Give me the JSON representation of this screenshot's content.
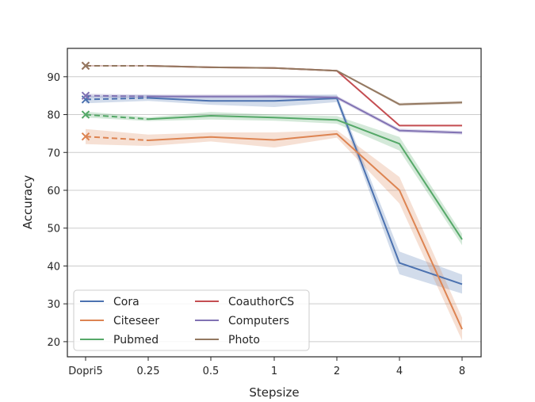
{
  "chart_data": {
    "type": "line",
    "title": "",
    "xlabel": "Stepsize",
    "ylabel": "Accuracy",
    "categories": [
      "Dopri5",
      "0.25",
      "0.5",
      "1",
      "2",
      "4",
      "8"
    ],
    "ylim": [
      16,
      97.5
    ],
    "yticks": [
      20,
      30,
      40,
      50,
      60,
      70,
      80,
      90
    ],
    "grid": "horizontal",
    "legend_position": "lower-left",
    "reference_marker": "x at Dopri5 connected by dashed segment",
    "series": [
      {
        "name": "Cora",
        "color": "#4c72b0",
        "values": [
          84.0,
          84.4,
          83.6,
          83.6,
          84.3,
          40.8,
          35.2
        ],
        "std": [
          1.0,
          0.8,
          1.0,
          1.6,
          1.0,
          3.0,
          2.5
        ]
      },
      {
        "name": "Citeseer",
        "color": "#dd8452",
        "values": [
          74.2,
          73.2,
          74.1,
          73.3,
          74.9,
          60.0,
          23.3
        ],
        "std": [
          2.0,
          1.5,
          1.2,
          2.0,
          1.0,
          3.5,
          3.0
        ]
      },
      {
        "name": "Pubmed",
        "color": "#55a868",
        "values": [
          80.0,
          78.8,
          79.7,
          79.2,
          78.6,
          72.3,
          47.0
        ],
        "std": [
          0.8,
          0.5,
          1.0,
          0.8,
          1.0,
          1.8,
          1.5
        ]
      },
      {
        "name": "CoauthorCS",
        "color": "#c44e52",
        "values": [
          92.9,
          92.9,
          92.5,
          92.3,
          91.6,
          77.1,
          77.1
        ],
        "std": [
          0.2,
          0.2,
          0.2,
          0.2,
          0.2,
          0.2,
          0.2
        ]
      },
      {
        "name": "Computers",
        "color": "#8172b3",
        "values": [
          85.0,
          84.8,
          84.8,
          84.8,
          84.5,
          75.8,
          75.2
        ],
        "std": [
          0.5,
          0.5,
          0.5,
          0.5,
          0.5,
          0.5,
          0.5
        ]
      },
      {
        "name": "Photo",
        "color": "#937860",
        "values": [
          92.9,
          92.9,
          92.5,
          92.3,
          91.6,
          82.7,
          83.2
        ],
        "std": [
          0.2,
          0.2,
          0.2,
          0.2,
          0.2,
          0.4,
          0.4
        ]
      }
    ]
  }
}
